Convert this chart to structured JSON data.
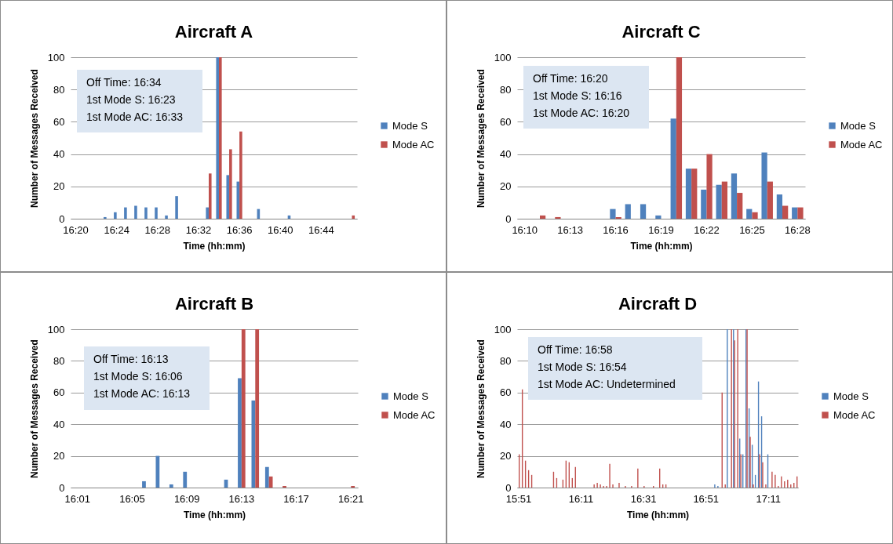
{
  "chart_data": [
    {
      "type": "bar",
      "title": "Aircraft A",
      "xlabel": "Time (hh:mm)",
      "ylabel": "Number of Messages Received",
      "categories": [
        "16:20",
        null,
        null,
        null,
        "16:24",
        null,
        null,
        null,
        "16:28",
        null,
        null,
        null,
        "16:32",
        null,
        null,
        null,
        "16:36",
        null,
        null,
        null,
        "16:40",
        null,
        null,
        null,
        "16:44",
        null,
        null,
        null
      ],
      "series": [
        {
          "name": "Mode S",
          "color": "#4f81bd",
          "values": [
            null,
            null,
            null,
            1,
            4,
            7,
            8,
            7,
            7,
            2,
            14,
            null,
            null,
            7,
            100,
            27,
            23,
            null,
            6,
            null,
            null,
            2,
            null,
            null,
            null,
            null,
            null,
            null
          ]
        },
        {
          "name": "Mode AC",
          "color": "#c0504d",
          "values": [
            null,
            null,
            null,
            null,
            null,
            null,
            null,
            null,
            null,
            null,
            null,
            null,
            null,
            28,
            100,
            43,
            54,
            null,
            null,
            null,
            null,
            null,
            null,
            null,
            null,
            null,
            null,
            2
          ]
        }
      ],
      "ylim": [
        0,
        100
      ],
      "yticks": [
        0,
        20,
        40,
        60,
        80,
        100
      ],
      "grid": "y",
      "legend": "right",
      "annotations": [
        "Off Time: 16:34",
        "1st Mode S: 16:23",
        "1st Mode AC: 16:33"
      ]
    },
    {
      "type": "bar",
      "title": "Aircraft C",
      "xlabel": "Time (hh:mm)",
      "ylabel": "Number of Messages Received",
      "categories": [
        "16:10",
        null,
        null,
        "16:13",
        null,
        null,
        "16:16",
        null,
        null,
        "16:19",
        null,
        null,
        "16:22",
        null,
        null,
        "16:25",
        null,
        null,
        "16:28"
      ],
      "series": [
        {
          "name": "Mode S",
          "color": "#4f81bd",
          "values": [
            null,
            null,
            null,
            null,
            null,
            null,
            6,
            9,
            9,
            2,
            62,
            31,
            18,
            21,
            28,
            6,
            41,
            15,
            7
          ]
        },
        {
          "name": "Mode AC",
          "color": "#c0504d",
          "values": [
            null,
            2,
            1,
            null,
            null,
            null,
            1,
            null,
            null,
            null,
            100,
            31,
            40,
            23,
            16,
            4,
            23,
            8,
            7
          ]
        }
      ],
      "ylim": [
        0,
        100
      ],
      "yticks": [
        0,
        20,
        40,
        60,
        80,
        100
      ],
      "grid": "y",
      "legend": "right",
      "annotations": [
        "Off Time: 16:20",
        "1st Mode S: 16:16",
        "1st Mode AC: 16:20"
      ]
    },
    {
      "type": "bar",
      "title": "Aircraft B",
      "xlabel": "Time (hh:mm)",
      "ylabel": "Number of Messages Received",
      "categories": [
        "16:01",
        null,
        null,
        null,
        "16:05",
        null,
        null,
        null,
        "16:09",
        null,
        null,
        null,
        "16:13",
        null,
        null,
        null,
        "16:17",
        null,
        null,
        null,
        "16:21"
      ],
      "series": [
        {
          "name": "Mode S",
          "color": "#4f81bd",
          "values": [
            null,
            null,
            null,
            null,
            null,
            4,
            20,
            2,
            10,
            null,
            null,
            5,
            69,
            55,
            13,
            null,
            null,
            null,
            null,
            null,
            null
          ]
        },
        {
          "name": "Mode AC",
          "color": "#c0504d",
          "values": [
            null,
            null,
            null,
            null,
            null,
            null,
            null,
            null,
            null,
            null,
            null,
            null,
            100,
            100,
            7,
            1,
            null,
            null,
            null,
            null,
            1
          ]
        }
      ],
      "ylim": [
        0,
        100
      ],
      "yticks": [
        0,
        20,
        40,
        60,
        80,
        100
      ],
      "grid": "y",
      "legend": "right",
      "annotations": [
        "Off Time: 16:13",
        "1st Mode S: 16:06",
        "1st Mode AC: 16:13"
      ]
    },
    {
      "type": "bar",
      "title": "Aircraft D",
      "xlabel": "Time (hh:mm)",
      "ylabel": "Number of Messages Received",
      "categories": [
        "15:51",
        null,
        null,
        null,
        null,
        null,
        null,
        null,
        null,
        null,
        null,
        null,
        null,
        null,
        null,
        null,
        null,
        null,
        null,
        null,
        "16:11",
        null,
        null,
        null,
        null,
        null,
        null,
        null,
        null,
        null,
        null,
        null,
        null,
        null,
        null,
        null,
        null,
        null,
        null,
        null,
        "16:31",
        null,
        null,
        null,
        null,
        null,
        null,
        null,
        null,
        null,
        null,
        null,
        null,
        null,
        null,
        null,
        null,
        null,
        null,
        null,
        "16:51",
        null,
        null,
        null,
        null,
        null,
        null,
        null,
        null,
        null,
        null,
        null,
        null,
        null,
        null,
        null,
        null,
        null,
        null,
        null,
        "17:11",
        null,
        null,
        null,
        null,
        null,
        null,
        null,
        null,
        null
      ],
      "series": [
        {
          "name": "Mode S",
          "color": "#4f81bd",
          "values": [
            null,
            null,
            null,
            null,
            null,
            null,
            null,
            null,
            null,
            null,
            null,
            null,
            null,
            null,
            null,
            null,
            null,
            null,
            null,
            null,
            null,
            null,
            null,
            null,
            null,
            null,
            null,
            null,
            null,
            null,
            null,
            null,
            null,
            null,
            null,
            null,
            null,
            null,
            null,
            null,
            null,
            null,
            null,
            null,
            null,
            null,
            null,
            null,
            null,
            null,
            null,
            null,
            null,
            null,
            null,
            null,
            null,
            null,
            null,
            null,
            null,
            null,
            null,
            2,
            1,
            null,
            null,
            100,
            null,
            100,
            null,
            31,
            21,
            100,
            50,
            27,
            8,
            67,
            45,
            null,
            21,
            null,
            null,
            null,
            null,
            null,
            null,
            null,
            null,
            null
          ]
        },
        {
          "name": "Mode AC",
          "color": "#c0504d",
          "values": [
            21,
            62,
            17,
            11,
            8,
            null,
            null,
            null,
            null,
            null,
            null,
            10,
            6,
            null,
            5,
            17,
            16,
            6,
            13,
            null,
            null,
            null,
            null,
            null,
            2,
            3,
            2,
            1,
            1,
            15,
            2,
            null,
            3,
            null,
            1,
            null,
            1,
            null,
            12,
            null,
            1,
            null,
            null,
            1,
            null,
            12,
            2,
            2,
            null,
            null,
            null,
            null,
            null,
            null,
            null,
            null,
            null,
            null,
            null,
            null,
            null,
            null,
            null,
            null,
            null,
            60,
            2,
            null,
            100,
            93,
            100,
            21,
            null,
            100,
            32,
            2,
            null,
            21,
            16,
            2,
            null,
            10,
            8,
            1,
            7,
            4,
            5,
            2,
            3,
            7
          ]
        }
      ],
      "ylim": [
        0,
        100
      ],
      "yticks": [
        0,
        20,
        40,
        60,
        80,
        100
      ],
      "grid": "y",
      "legend": "right",
      "annotations": [
        "Off Time: 16:58",
        "1st Mode S: 16:54",
        "1st Mode AC: Undetermined"
      ]
    }
  ]
}
